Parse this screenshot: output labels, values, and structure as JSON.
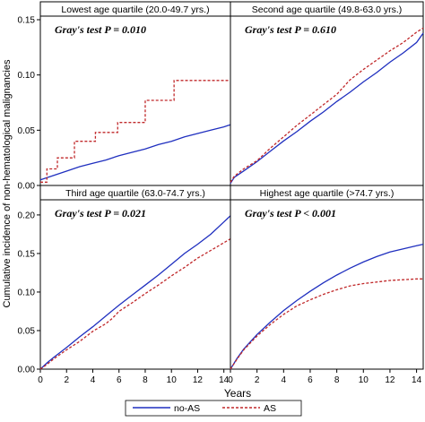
{
  "chart_data": {
    "type": "line",
    "ylabel": "Cumulative incidence of non-hematological malignancies",
    "xlabel": "Years",
    "x_ticks": [
      "0",
      "2",
      "4",
      "6",
      "8",
      "10",
      "12",
      "14"
    ],
    "xlim": [
      0,
      14.5
    ],
    "legend": {
      "placement": "bottom",
      "entries": [
        {
          "name": "no-AS",
          "color": "#1f2fbf",
          "style": "solid"
        },
        {
          "name": "AS",
          "color": "#c0282a",
          "style": "dashed"
        }
      ]
    },
    "panels": [
      {
        "title": "Lowest age quartile  (20.0-49.7 yrs.)",
        "test": "Gray's test P = 0.010",
        "ylim": [
          0,
          0.15
        ],
        "y_ticks": [
          "0.00",
          "0.05",
          "0.10",
          "0.15"
        ],
        "y_tick_values": [
          0,
          0.05,
          0.1,
          0.15
        ],
        "series": [
          {
            "name": "no-AS",
            "type": "curve",
            "x": [
              0,
              1,
              2,
              3,
              4,
              5,
              6,
              7,
              8,
              9,
              10,
              11,
              12,
              13,
              14,
              14.5
            ],
            "values": [
              0.005,
              0.009,
              0.013,
              0.017,
              0.02,
              0.023,
              0.027,
              0.03,
              0.033,
              0.037,
              0.04,
              0.044,
              0.047,
              0.05,
              0.053,
              0.055
            ]
          },
          {
            "name": "AS",
            "type": "step",
            "x": [
              0,
              0.5,
              1.3,
              2.6,
              4.2,
              5.9,
              8.0,
              10.2,
              14.5
            ],
            "values": [
              0.003,
              0.015,
              0.025,
              0.04,
              0.048,
              0.057,
              0.077,
              0.095,
              0.095
            ]
          }
        ]
      },
      {
        "title": "Second age quartile  (49.8-63.0 yrs.)",
        "test": "Gray's test P = 0.610",
        "ylim": [
          0,
          0.16
        ],
        "y_ticks": [],
        "y_tick_values": [
          0,
          0.05,
          0.1,
          0.15
        ],
        "series": [
          {
            "name": "no-AS",
            "type": "curve",
            "x": [
              0,
              0.3,
              1,
              2,
              3,
              4,
              5,
              6,
              7,
              8,
              9,
              10,
              11,
              12,
              13,
              14,
              14.5
            ],
            "values": [
              0.002,
              0.008,
              0.014,
              0.023,
              0.033,
              0.043,
              0.052,
              0.062,
              0.071,
              0.081,
              0.09,
              0.1,
              0.109,
              0.119,
              0.128,
              0.138,
              0.147
            ]
          },
          {
            "name": "AS",
            "type": "curve",
            "x": [
              0,
              0.3,
              1,
              2,
              3,
              4,
              5,
              6,
              7,
              8,
              9,
              10,
              11,
              12,
              13,
              14,
              14.5
            ],
            "values": [
              0.003,
              0.009,
              0.016,
              0.024,
              0.036,
              0.047,
              0.058,
              0.068,
              0.078,
              0.088,
              0.102,
              0.112,
              0.121,
              0.13,
              0.138,
              0.148,
              0.152
            ]
          }
        ]
      },
      {
        "title": "Third age quartile  (63.0-74.7 yrs.)",
        "test": "Gray's test P = 0.021",
        "ylim": [
          0,
          0.215
        ],
        "y_ticks": [
          "0.00",
          "0.05",
          "0.10",
          "0.15",
          "0.20"
        ],
        "y_tick_values": [
          0,
          0.05,
          0.1,
          0.15,
          0.2
        ],
        "series": [
          {
            "name": "no-AS",
            "type": "curve",
            "x": [
              0,
              0.5,
              1,
              2,
              3,
              4,
              5,
              6,
              7,
              8,
              9,
              10,
              11,
              12,
              13,
              14,
              14.5
            ],
            "values": [
              0.0,
              0.008,
              0.015,
              0.028,
              0.042,
              0.055,
              0.069,
              0.083,
              0.096,
              0.109,
              0.122,
              0.136,
              0.15,
              0.162,
              0.175,
              0.191,
              0.199
            ]
          },
          {
            "name": "AS",
            "type": "curve",
            "x": [
              0,
              0.5,
              1,
              2,
              3,
              4,
              5,
              5.5,
              6,
              7,
              8,
              9,
              10,
              11,
              12,
              13,
              14,
              14.5
            ],
            "values": [
              0.0,
              0.006,
              0.013,
              0.025,
              0.036,
              0.049,
              0.059,
              0.066,
              0.075,
              0.086,
              0.098,
              0.109,
              0.121,
              0.132,
              0.144,
              0.154,
              0.164,
              0.169
            ]
          }
        ]
      },
      {
        "title": "Highest age quartile  (>74.7 yrs.)",
        "test": "Gray's test P < 0.001",
        "ylim": [
          0,
          0.215
        ],
        "y_ticks": [],
        "y_tick_values": [
          0,
          0.05,
          0.1,
          0.15,
          0.2
        ],
        "series": [
          {
            "name": "no-AS",
            "type": "curve",
            "x": [
              0,
              0.5,
              1,
              2,
              3,
              4,
              5,
              6,
              7,
              8,
              9,
              10,
              11,
              12,
              13,
              14,
              14.5
            ],
            "values": [
              0.0,
              0.014,
              0.026,
              0.045,
              0.061,
              0.076,
              0.089,
              0.101,
              0.112,
              0.122,
              0.131,
              0.139,
              0.146,
              0.152,
              0.156,
              0.16,
              0.162
            ]
          },
          {
            "name": "AS",
            "type": "curve",
            "x": [
              0,
              0.5,
              1,
              2,
              3,
              4,
              5,
              6,
              7,
              8,
              9,
              10,
              11,
              12,
              13,
              14,
              14.5
            ],
            "values": [
              0.0,
              0.013,
              0.025,
              0.043,
              0.058,
              0.071,
              0.082,
              0.09,
              0.097,
              0.103,
              0.108,
              0.111,
              0.113,
              0.115,
              0.116,
              0.117,
              0.117
            ]
          }
        ]
      }
    ]
  }
}
